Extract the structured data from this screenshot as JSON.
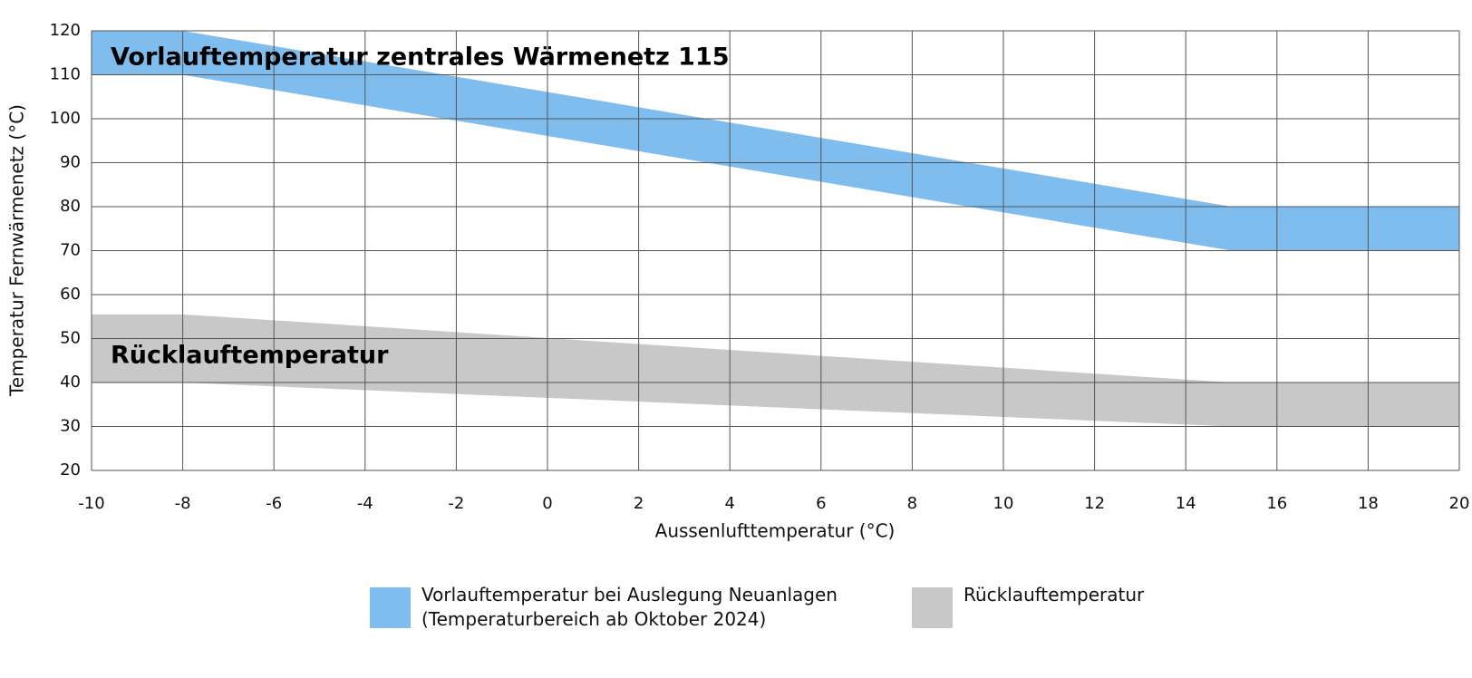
{
  "chart_data": {
    "type": "band",
    "x_label": "Aussenlufttemperatur (°C)",
    "y_label": "Temperatur Fernwärmenetz (°C)",
    "x": [
      -10,
      -8,
      15,
      20
    ],
    "series": [
      {
        "name": "Vorlauftemperatur bei Auslegung Neuanlagen\n(Temperaturbereich ab Oktober 2024)",
        "color": "#7fbdee",
        "upper": [
          120,
          120,
          80,
          80
        ],
        "lower": [
          110,
          110,
          70,
          70
        ]
      },
      {
        "name": "Rücklauftemperatur",
        "color": "#c8c8c8",
        "upper": [
          55.5,
          55.5,
          40,
          40
        ],
        "lower": [
          40,
          40,
          30,
          30
        ]
      }
    ],
    "annotations": [
      "Vorlauftemperatur zentrales Wärmenetz 115",
      "Rücklauftemperatur"
    ],
    "xlim": [
      -10,
      20
    ],
    "xticks": [
      -10,
      -8,
      -6,
      -4,
      -2,
      0,
      2,
      4,
      6,
      8,
      10,
      12,
      14,
      16,
      18,
      20
    ],
    "ylim": [
      20,
      120
    ],
    "yticks": [
      20,
      30,
      40,
      50,
      60,
      70,
      80,
      90,
      100,
      110,
      120
    ],
    "grid": true
  }
}
